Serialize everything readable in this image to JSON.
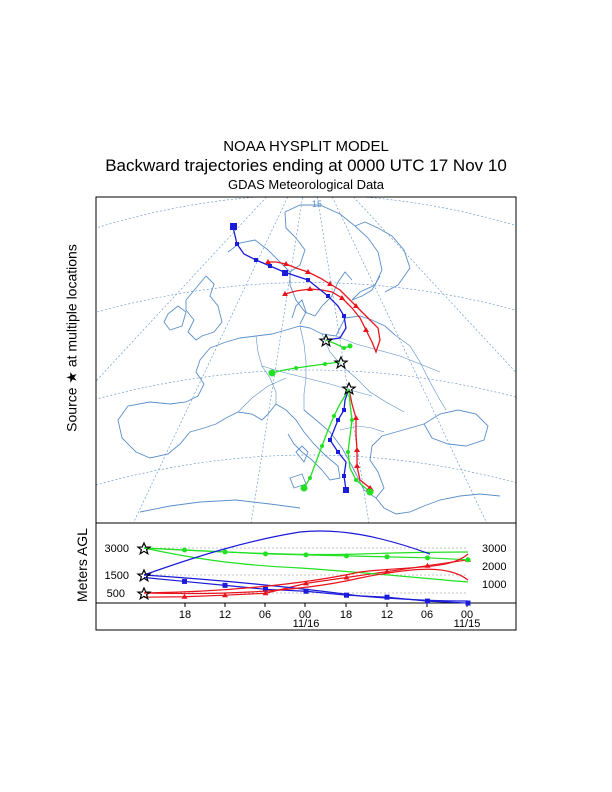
{
  "titles": {
    "line1": "NOAA HYSPLIT MODEL",
    "line2": "Backward trajectories ending at 0000 UTC 17 Nov 10",
    "line3": "GDAS Meteorological Data"
  },
  "y_axis_labels": {
    "source": "Source ★ at multiple locations",
    "height": "Meters AGL"
  },
  "map": {
    "meridian_label": "15",
    "colors": {
      "coast": "#5b8fc9",
      "grid": "#5b8fc9",
      "frame": "#000000"
    }
  },
  "height_panel": {
    "left_ticks": [
      "3000",
      "1500",
      "500"
    ],
    "right_ticks": [
      "3000",
      "2000",
      "1000"
    ],
    "time_ticks": [
      "18",
      "12",
      "06",
      "00",
      "18",
      "12",
      "06",
      "00"
    ],
    "date_labels": [
      "11/16",
      "11/15"
    ]
  },
  "chart_data": {
    "type": "line",
    "title": "Backward trajectories ending at 0000 UTC 17 Nov 10",
    "ylabel": "Meters AGL",
    "x_hours_back": [
      0,
      6,
      12,
      18,
      24,
      30,
      36,
      42,
      48
    ],
    "series": [
      {
        "name": "red (start 500 m)",
        "color": "#e8141d",
        "marker": "triangle",
        "values": [
          500,
          520,
          600,
          700,
          1200,
          1500,
          1800,
          2100,
          2400
        ]
      },
      {
        "name": "blue (start 1500 m)",
        "color": "#1b1bd9",
        "marker": "square",
        "values": [
          1500,
          1300,
          1100,
          900,
          800,
          600,
          500,
          300,
          200
        ]
      },
      {
        "name": "green (start 3000 m)",
        "color": "#22e022",
        "marker": "circle",
        "values": [
          3000,
          2900,
          2800,
          2700,
          2650,
          2600,
          2550,
          2500,
          2400
        ]
      }
    ]
  }
}
